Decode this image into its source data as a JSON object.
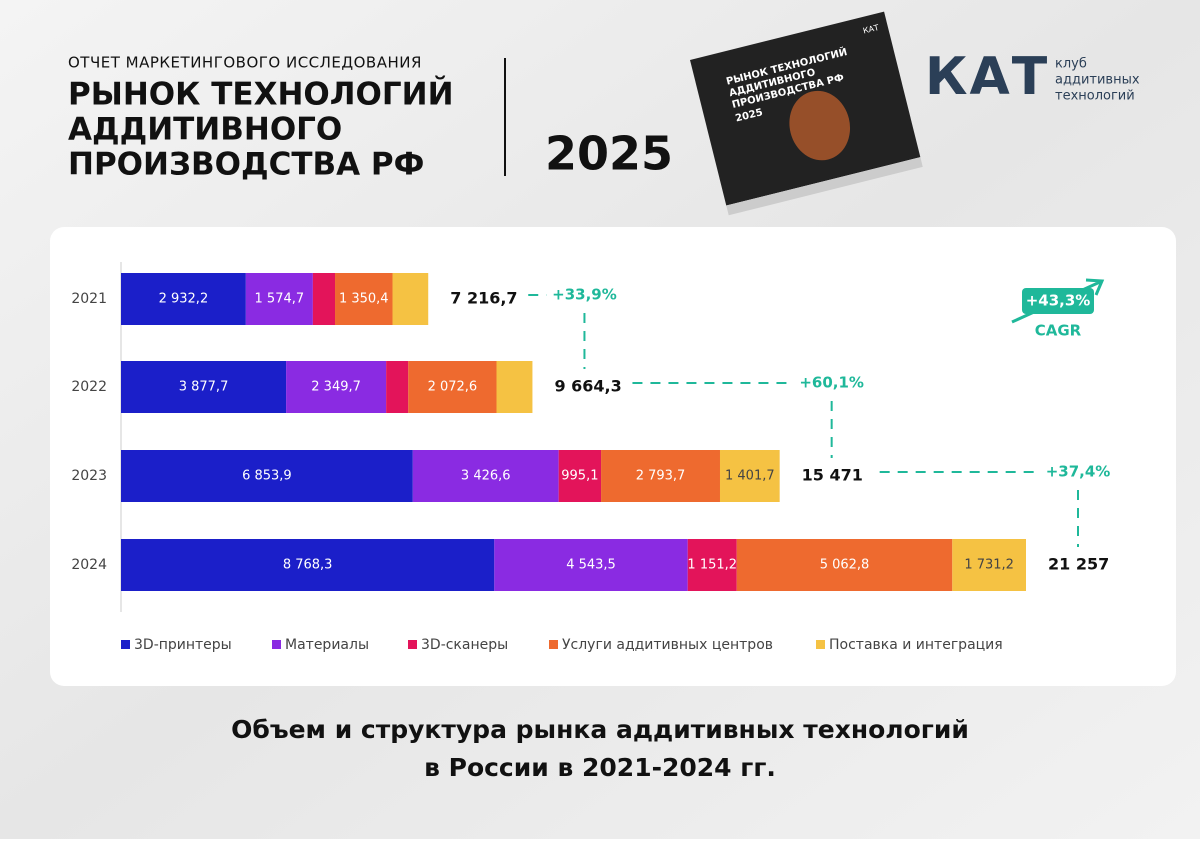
{
  "header": {
    "kicker": "ОТЧЕТ МАРКЕТИНГОВОГО ИССЛЕДОВАНИЯ",
    "title_lines": [
      "РЫНОК ТЕХНОЛОГИЙ",
      "АДДИТИВНОГО",
      "ПРОИЗВОДСТВА РФ"
    ],
    "year": "2025",
    "book": {
      "logo": "КАТ",
      "title_lines": [
        "РЫНОК ТЕХНОЛОГИЙ",
        "АДДИТИВНОГО",
        "ПРОИЗВОДСТВА РФ"
      ],
      "year": "2025"
    },
    "logo": {
      "mark": "КАТ",
      "lines": [
        "клуб",
        "аддитивных",
        "технологий"
      ]
    }
  },
  "chart_data": {
    "type": "bar",
    "orientation": "horizontal",
    "stacked": true,
    "categories": [
      "2021",
      "2022",
      "2023",
      "2024"
    ],
    "series": [
      {
        "name": "3D-принтеры",
        "color": "#1b1fc9",
        "values": [
          2932.2,
          3877.7,
          6853.9,
          8768.3
        ],
        "value_labels": [
          "2 932,2",
          "3 877,7",
          "6 853,9",
          "8 768,3"
        ]
      },
      {
        "name": "Материалы",
        "color": "#8a2be2",
        "values": [
          1574.7,
          2349.7,
          3426.6,
          4543.5
        ],
        "value_labels": [
          "1 574,7",
          "2 349,7",
          "3 426,6",
          "4 543,5"
        ]
      },
      {
        "name": "3D-сканеры",
        "color": "#e3145a",
        "values": [
          520,
          520,
          995.1,
          1151.2
        ],
        "value_labels": [
          null,
          null,
          "995,1",
          "1 151,2"
        ]
      },
      {
        "name": "Услуги аддитивных центров",
        "color": "#ee6a2f",
        "values": [
          1350.4,
          2072.6,
          2793.7,
          5062.8
        ],
        "value_labels": [
          "1 350,4",
          "2 072,6",
          "2 793,7",
          "5 062,8"
        ]
      },
      {
        "name": "Поставка и интеграция",
        "color": "#f5c243",
        "values": [
          839,
          844,
          1401.7,
          1731.2
        ],
        "value_labels": [
          null,
          null,
          "1 401,7",
          "1 731,2"
        ]
      }
    ],
    "totals": {
      "values": [
        7216.7,
        9664.3,
        15471,
        21257
      ],
      "value_labels": [
        "7 216,7",
        "9 664,3",
        "15 471",
        "21 257"
      ]
    },
    "growth": {
      "values": [
        33.9,
        60.1,
        37.4
      ],
      "value_labels": [
        "+33,9%",
        "+60,1%",
        "+37,4%"
      ]
    },
    "cagr": {
      "value": 43.3,
      "label": "+43,3%",
      "text": "CAGR"
    },
    "caption_lines": [
      "Объем и структура рынка аддитивных технологий",
      "в России в 2021-2024 гг."
    ]
  }
}
